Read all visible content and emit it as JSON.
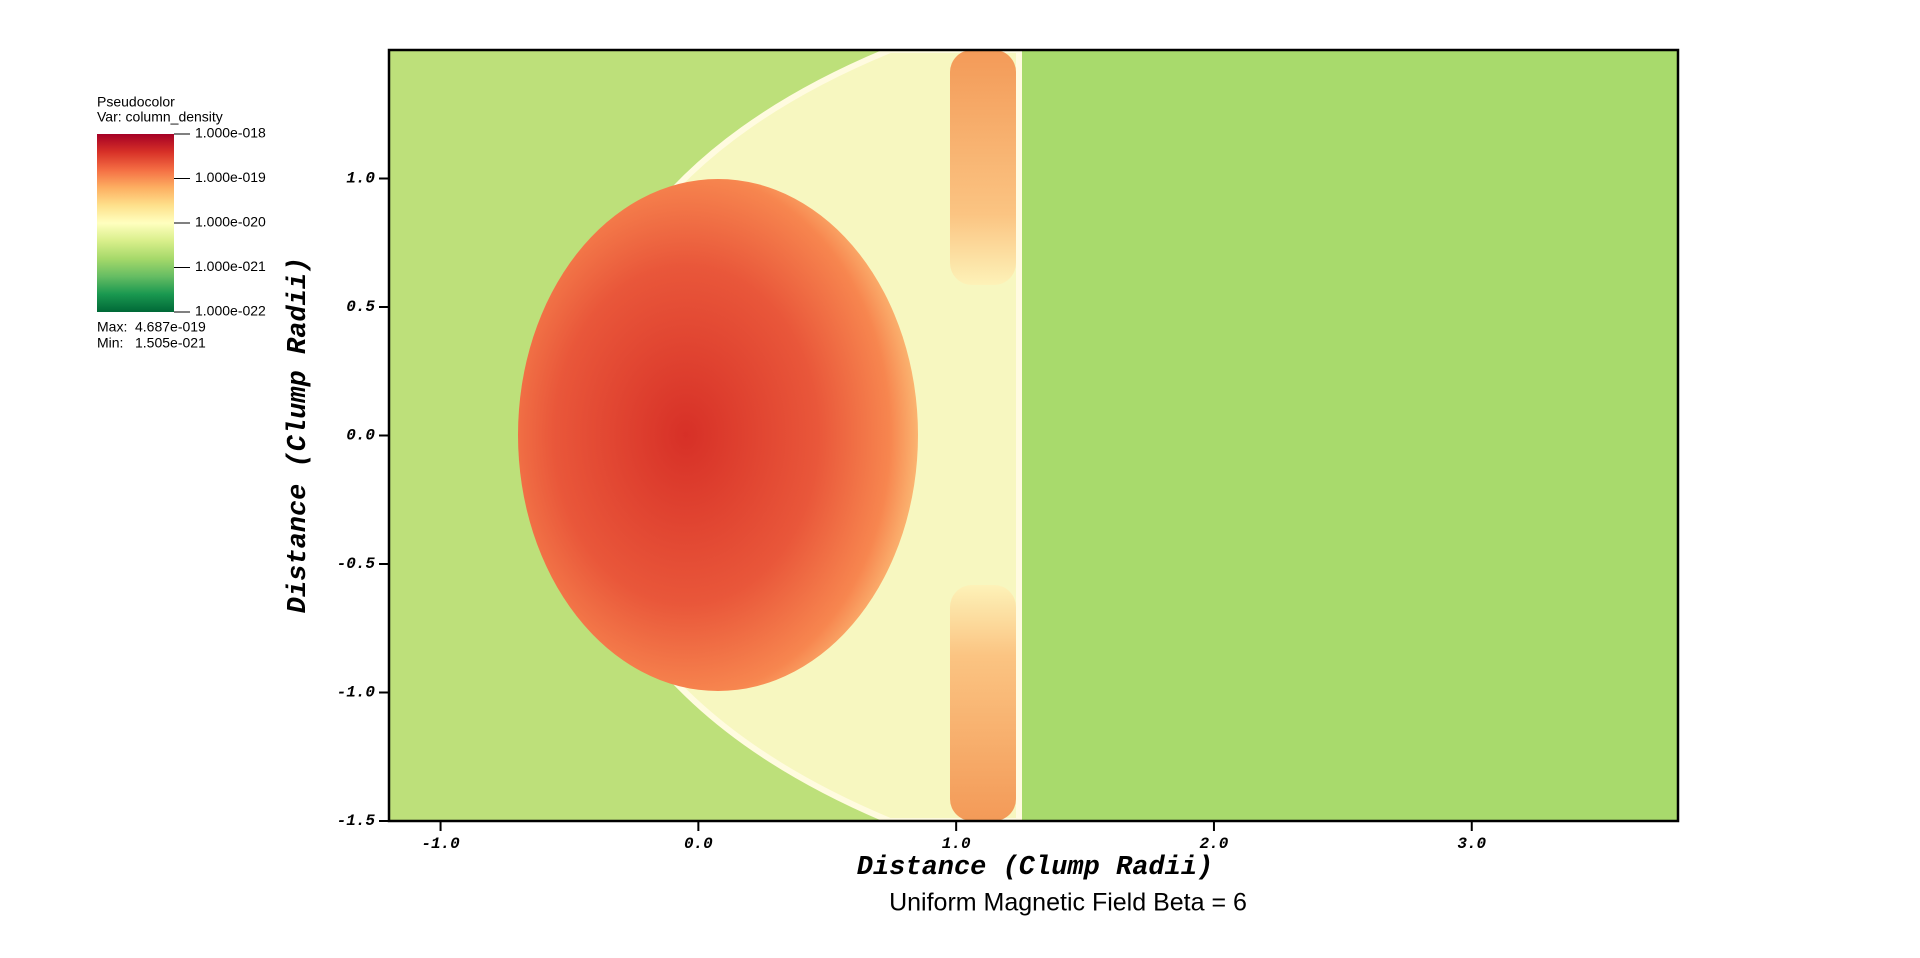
{
  "chart_data": {
    "type": "pseudocolor",
    "title": "Uniform Magnetic Field Beta = 6",
    "xlabel": "Distance (Clump Radii)",
    "ylabel": "Distance (Clump Radii)",
    "xlim": [
      -1.2,
      3.8
    ],
    "ylim": [
      -1.5,
      1.5
    ],
    "xticks": [
      {
        "value": -1,
        "label": "-1.0"
      },
      {
        "value": 0,
        "label": "0.0"
      },
      {
        "value": 1,
        "label": "1.0"
      },
      {
        "value": 2,
        "label": "2.0"
      },
      {
        "value": 3,
        "label": "3.0"
      }
    ],
    "yticks": [
      {
        "value": -1.5,
        "label": "-1.5"
      },
      {
        "value": -1,
        "label": "-1.0"
      },
      {
        "value": -0.5,
        "label": "-0.5"
      },
      {
        "value": 0,
        "label": "0.0"
      },
      {
        "value": 0.5,
        "label": "0.5"
      },
      {
        "value": 1,
        "label": "1.0"
      }
    ],
    "legend": {
      "title": "Pseudocolor",
      "variable": "Var: column_density",
      "log_scale": true,
      "clim": [
        1e-22,
        1e-18
      ],
      "colormap": [
        "#006837",
        "#1a9850",
        "#66bd63",
        "#a6d96a",
        "#d9ef8b",
        "#ffffbf",
        "#fee08b",
        "#fdae61",
        "#f46d43",
        "#d73027",
        "#a50026"
      ],
      "ticks": [
        {
          "value": 1e-18,
          "label": "1.000e-018"
        },
        {
          "value": 1e-19,
          "label": "1.000e-019"
        },
        {
          "value": 1e-20,
          "label": "1.000e-020"
        },
        {
          "value": 1e-21,
          "label": "1.000e-021"
        },
        {
          "value": 1e-22,
          "label": "1.000e-022"
        }
      ],
      "max_label": "Max:",
      "max": {
        "value": 4.687e-19,
        "label": "4.687e-019"
      },
      "min_label": "Min:",
      "min": {
        "value": 1.505e-21,
        "label": "1.505e-021"
      }
    }
  }
}
